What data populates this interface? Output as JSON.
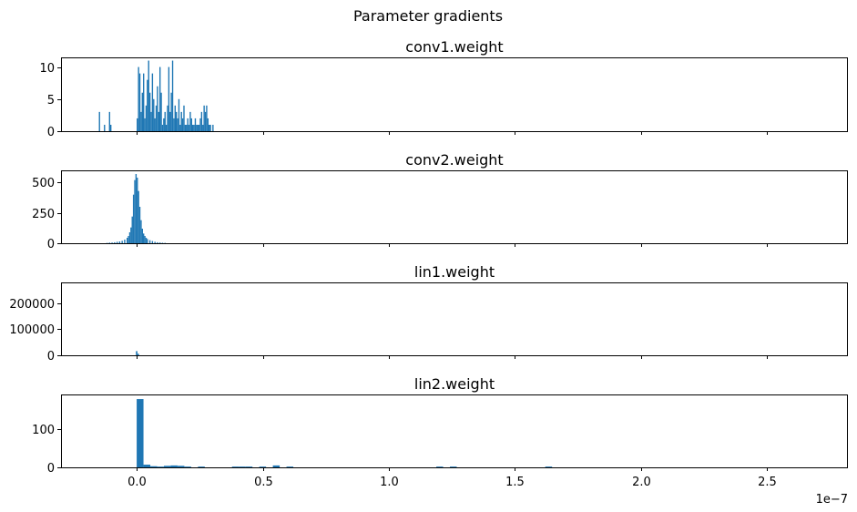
{
  "figure": {
    "suptitle": "Parameter gradients",
    "offset_text": "1e−7",
    "bar_color": "#1f77b4"
  },
  "chart_data": [
    {
      "type": "bar",
      "title": "conv1.weight",
      "xlim": [
        -0.3,
        2.82
      ],
      "ylim": [
        0,
        11.5
      ],
      "xticks": [
        0.0,
        0.5,
        1.0,
        1.5,
        2.0,
        2.5
      ],
      "xtick_labels": [],
      "yticks": [
        0,
        5,
        10
      ],
      "ytick_labels": [
        "0",
        "5",
        "10"
      ],
      "bin_width": 0.005,
      "x": [
        -0.15,
        -0.13,
        -0.11,
        -0.105,
        0.0,
        0.005,
        0.01,
        0.015,
        0.02,
        0.025,
        0.03,
        0.035,
        0.04,
        0.045,
        0.05,
        0.055,
        0.06,
        0.065,
        0.07,
        0.075,
        0.08,
        0.085,
        0.09,
        0.095,
        0.1,
        0.105,
        0.11,
        0.115,
        0.12,
        0.125,
        0.13,
        0.135,
        0.14,
        0.145,
        0.15,
        0.155,
        0.16,
        0.165,
        0.17,
        0.175,
        0.18,
        0.185,
        0.19,
        0.195,
        0.2,
        0.205,
        0.21,
        0.215,
        0.22,
        0.225,
        0.23,
        0.235,
        0.24,
        0.245,
        0.25,
        0.255,
        0.26,
        0.265,
        0.27,
        0.275,
        0.28,
        0.285,
        0.29,
        0.295,
        0.3
      ],
      "values": [
        3,
        1,
        3,
        1,
        2,
        10,
        9,
        3,
        6,
        9,
        2,
        4,
        8,
        11,
        6,
        3,
        9,
        5,
        2,
        4,
        7,
        3,
        10,
        6,
        1,
        2,
        3,
        1,
        4,
        10,
        3,
        6,
        11,
        2,
        4,
        3,
        2,
        5,
        1,
        3,
        2,
        4,
        1,
        1,
        2,
        1,
        3,
        2,
        1,
        1,
        2,
        1,
        1,
        1,
        2,
        3,
        1,
        4,
        3,
        4,
        2,
        1,
        1,
        0,
        1
      ]
    },
    {
      "type": "bar",
      "title": "conv2.weight",
      "xlim": [
        -0.3,
        2.82
      ],
      "ylim": [
        0,
        600
      ],
      "xticks": [
        0.0,
        0.5,
        1.0,
        1.5,
        2.0,
        2.5
      ],
      "xtick_labels": [],
      "yticks": [
        0,
        250,
        500
      ],
      "ytick_labels": [
        "0",
        "250",
        "500"
      ],
      "bin_width": 0.005,
      "x": [
        -0.12,
        -0.11,
        -0.1,
        -0.09,
        -0.08,
        -0.07,
        -0.06,
        -0.05,
        -0.04,
        -0.035,
        -0.03,
        -0.025,
        -0.02,
        -0.015,
        -0.01,
        -0.005,
        0.0,
        0.005,
        0.01,
        0.015,
        0.02,
        0.025,
        0.03,
        0.035,
        0.04,
        0.05,
        0.06,
        0.07,
        0.08,
        0.09,
        0.1,
        0.11
      ],
      "values": [
        3,
        5,
        6,
        8,
        12,
        15,
        20,
        30,
        45,
        60,
        90,
        130,
        220,
        400,
        520,
        570,
        540,
        430,
        300,
        190,
        120,
        80,
        60,
        45,
        35,
        25,
        18,
        12,
        8,
        6,
        4,
        3
      ]
    },
    {
      "type": "bar",
      "title": "lin1.weight",
      "xlim": [
        -0.3,
        2.82
      ],
      "ylim": [
        0,
        280000
      ],
      "xticks": [
        0.0,
        0.5,
        1.0,
        1.5,
        2.0,
        2.5
      ],
      "xtick_labels": [],
      "yticks": [
        0,
        100000,
        200000
      ],
      "ytick_labels": [
        "0",
        "100000",
        "200000"
      ],
      "bin_width": 0.006,
      "x": [
        -0.003,
        0.003
      ],
      "values": [
        16000,
        6000
      ]
    },
    {
      "type": "bar",
      "title": "lin2.weight",
      "xlim": [
        -0.3,
        2.82
      ],
      "ylim": [
        0,
        190
      ],
      "xticks": [
        0.0,
        0.5,
        1.0,
        1.5,
        2.0,
        2.5
      ],
      "xtick_labels": [
        "0.0",
        "0.5",
        "1.0",
        "1.5",
        "2.0",
        "2.5"
      ],
      "yticks": [
        0,
        100
      ],
      "ytick_labels": [
        "0",
        "100"
      ],
      "bin_width": 0.027,
      "x": [
        0.0,
        0.027,
        0.054,
        0.081,
        0.108,
        0.135,
        0.162,
        0.189,
        0.243,
        0.378,
        0.405,
        0.432,
        0.486,
        0.54,
        0.594,
        1.188,
        1.242,
        1.62
      ],
      "values": [
        178,
        7,
        3,
        2,
        4,
        5,
        4,
        2,
        2,
        2,
        2,
        2,
        2,
        5,
        2,
        2,
        2,
        2
      ]
    }
  ]
}
